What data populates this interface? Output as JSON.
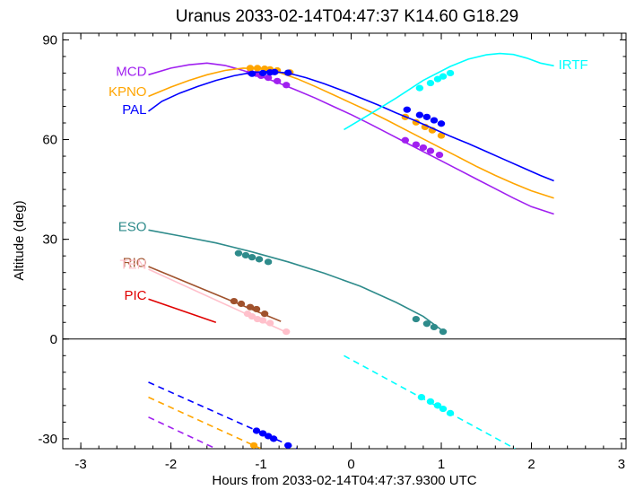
{
  "chart_data": {
    "type": "line",
    "title": "Uranus 2033-02-14T04:47:37  K14.60  G18.29",
    "xlabel": "Hours from 2033-02-14T04:47:37.9300 UTC",
    "ylabel": "Altitude (deg)",
    "xlim": [
      -3.2,
      3.05
    ],
    "ylim": [
      -33,
      92
    ],
    "xticks": [
      -3,
      -2,
      -1,
      0,
      1,
      2,
      3
    ],
    "xtick_labels": [
      "-3",
      "-2",
      "-1",
      "0",
      "1",
      "2",
      "3"
    ],
    "yticks": [
      -30,
      0,
      30,
      60,
      90
    ],
    "ytick_labels": [
      "-30",
      "0",
      "30",
      "60",
      "90"
    ],
    "grid": false,
    "zero_line": 0,
    "series": [
      {
        "name": "MCD",
        "color": "#a020f0",
        "label_at": [
          -2.25,
          80.5
        ],
        "x": [
          -2.25,
          -2.0,
          -1.8,
          -1.6,
          -1.4,
          -1.2,
          -1.0,
          -0.8,
          -0.6,
          -0.4,
          -0.2,
          0.0,
          0.2,
          0.4,
          0.6,
          0.8,
          1.0,
          1.2,
          1.4,
          1.6,
          1.8,
          2.0,
          2.25
        ],
        "y": [
          79.5,
          81.5,
          82.5,
          83.0,
          82.3,
          80.8,
          79.0,
          77.0,
          74.8,
          72.5,
          70.0,
          67.5,
          64.8,
          62.0,
          59.2,
          56.4,
          53.6,
          50.8,
          48.0,
          45.2,
          42.4,
          39.8,
          37.6
        ],
        "markers": [
          [
            -1.12,
            80.2
          ],
          [
            -1.05,
            79.8
          ],
          [
            -1.0,
            79.2
          ],
          [
            -0.92,
            78.6
          ],
          [
            -0.82,
            77.6
          ],
          [
            -0.72,
            76.4
          ],
          [
            0.6,
            59.8
          ],
          [
            0.72,
            58.5
          ],
          [
            0.8,
            57.6
          ],
          [
            0.88,
            56.6
          ],
          [
            0.98,
            55.4
          ]
        ]
      },
      {
        "name": "KPNO",
        "color": "#ffa500",
        "label_at": [
          -2.25,
          74.5
        ],
        "x": [
          -2.25,
          -2.0,
          -1.8,
          -1.6,
          -1.4,
          -1.2,
          -1.0,
          -0.8,
          -0.6,
          -0.4,
          -0.2,
          0.0,
          0.2,
          0.4,
          0.6,
          0.8,
          1.0,
          1.2,
          1.4,
          1.6,
          1.8,
          2.0,
          2.25
        ],
        "y": [
          73.0,
          75.8,
          77.8,
          79.5,
          80.8,
          81.5,
          81.3,
          80.2,
          78.3,
          76.0,
          73.5,
          71.0,
          68.5,
          65.8,
          63.0,
          60.2,
          57.4,
          54.6,
          51.8,
          49.2,
          46.8,
          44.6,
          42.4
        ],
        "markers": [
          [
            -1.12,
            81.5
          ],
          [
            -1.04,
            81.5
          ],
          [
            -0.96,
            81.3
          ],
          [
            -0.9,
            81.1
          ],
          [
            -0.82,
            80.8
          ],
          [
            -0.68,
            80.2
          ],
          [
            0.6,
            66.8
          ],
          [
            0.72,
            65.2
          ],
          [
            0.82,
            63.8
          ],
          [
            0.9,
            62.8
          ],
          [
            1.0,
            61.2
          ]
        ]
      },
      {
        "name": "PAL",
        "color": "#0000ff",
        "label_at": [
          -2.25,
          69.0
        ],
        "x": [
          -2.25,
          -2.1,
          -1.9,
          -1.7,
          -1.5,
          -1.3,
          -1.1,
          -0.9,
          -0.7,
          -0.5,
          -0.3,
          -0.1,
          0.1,
          0.3,
          0.5,
          0.7,
          0.9,
          1.1,
          1.3,
          1.5,
          1.7,
          1.9,
          2.1,
          2.25
        ],
        "y": [
          68.5,
          71.5,
          74.0,
          76.0,
          77.8,
          79.2,
          80.2,
          80.5,
          80.0,
          78.6,
          76.8,
          74.8,
          72.6,
          70.4,
          68.0,
          65.8,
          63.4,
          61.0,
          58.8,
          56.4,
          54.0,
          51.6,
          49.2,
          47.6
        ],
        "markers": [
          [
            -1.1,
            79.8
          ],
          [
            -0.98,
            80.0
          ],
          [
            -0.9,
            80.2
          ],
          [
            -0.85,
            80.3
          ],
          [
            -0.7,
            80.1
          ],
          [
            0.62,
            69.0
          ],
          [
            0.76,
            67.4
          ],
          [
            0.84,
            66.8
          ],
          [
            0.92,
            65.8
          ],
          [
            1.0,
            64.8
          ]
        ]
      },
      {
        "name": "IRTF",
        "color": "#00ffff",
        "label_at": [
          2.28,
          82.5
        ],
        "x": [
          -0.08,
          0.2,
          0.5,
          0.8,
          1.1,
          1.3,
          1.5,
          1.65,
          1.8,
          1.95,
          2.1,
          2.25
        ],
        "y": [
          63.0,
          67.5,
          72.5,
          77.8,
          82.0,
          84.2,
          85.5,
          85.9,
          85.6,
          84.5,
          83.0,
          82.2
        ],
        "markers": [
          [
            0.76,
            75.5
          ],
          [
            0.88,
            77.0
          ],
          [
            0.96,
            78.2
          ],
          [
            1.02,
            79.0
          ],
          [
            1.1,
            80.0
          ]
        ],
        "below_horizon": {
          "x": [
            -0.08,
            1.82
          ],
          "y": [
            -5.0,
            -33.0
          ],
          "markers": [
            [
              0.78,
              -17.5
            ],
            [
              0.88,
              -18.8
            ],
            [
              0.96,
              -20.0
            ],
            [
              1.02,
              -21.0
            ],
            [
              1.1,
              -22.3
            ]
          ]
        }
      },
      {
        "name": "ESO",
        "color": "#2e8b8b",
        "label_at": [
          -2.25,
          33.8
        ],
        "x": [
          -2.25,
          -1.9,
          -1.5,
          -1.1,
          -0.7,
          -0.3,
          0.1,
          0.5,
          0.8,
          1.05
        ],
        "y": [
          32.8,
          31.0,
          28.9,
          26.2,
          23.2,
          19.8,
          15.9,
          11.0,
          6.8,
          1.8
        ],
        "markers": [
          [
            -1.25,
            25.8
          ],
          [
            -1.17,
            25.2
          ],
          [
            -1.1,
            24.6
          ],
          [
            -1.02,
            24.0
          ],
          [
            -0.92,
            23.2
          ],
          [
            0.72,
            6.0
          ],
          [
            0.84,
            4.6
          ],
          [
            0.92,
            3.6
          ],
          [
            1.02,
            2.2
          ]
        ]
      },
      {
        "name": "RIO",
        "color": "#a0522d",
        "label_at": [
          -2.25,
          23.0
        ],
        "x": [
          -2.25,
          -0.78
        ],
        "y": [
          21.8,
          5.3
        ],
        "markers": [
          [
            -1.3,
            11.4
          ],
          [
            -1.22,
            10.6
          ],
          [
            -1.12,
            9.6
          ],
          [
            -1.05,
            9.0
          ],
          [
            -0.96,
            7.6
          ]
        ]
      },
      {
        "name": "TEN",
        "color": "#ffc0cb",
        "label_at": [
          -2.25,
          22.5
        ],
        "x": [
          -2.25,
          -0.7
        ],
        "y": [
          21.0,
          1.8
        ],
        "markers": [
          [
            -1.15,
            7.6
          ],
          [
            -1.1,
            6.8
          ],
          [
            -1.04,
            6.0
          ],
          [
            -0.98,
            5.6
          ],
          [
            -0.9,
            4.8
          ],
          [
            -0.72,
            2.2
          ]
        ]
      },
      {
        "name": "PIC",
        "color": "#e00000",
        "label_at": [
          -2.25,
          13.2
        ],
        "x": [
          -2.25,
          -1.5
        ],
        "y": [
          12.0,
          5.0
        ],
        "markers": []
      },
      {
        "name": "",
        "color": "#0000ff",
        "dashed": true,
        "x": [
          -2.25,
          -0.6
        ],
        "y": [
          -13.0,
          -33.0
        ],
        "markers": [
          [
            -1.05,
            -27.6
          ],
          [
            -0.98,
            -28.4
          ],
          [
            -0.92,
            -29.2
          ],
          [
            -0.86,
            -30.0
          ],
          [
            -0.7,
            -32.0
          ]
        ]
      },
      {
        "name": "",
        "color": "#ffa500",
        "dashed": true,
        "x": [
          -2.25,
          -1.0
        ],
        "y": [
          -17.5,
          -33.0
        ],
        "markers": [
          [
            -1.08,
            -32.0
          ]
        ]
      },
      {
        "name": "",
        "color": "#a020f0",
        "dashed": true,
        "x": [
          -2.25,
          -1.5
        ],
        "y": [
          -23.5,
          -33.0
        ],
        "markers": []
      }
    ]
  }
}
